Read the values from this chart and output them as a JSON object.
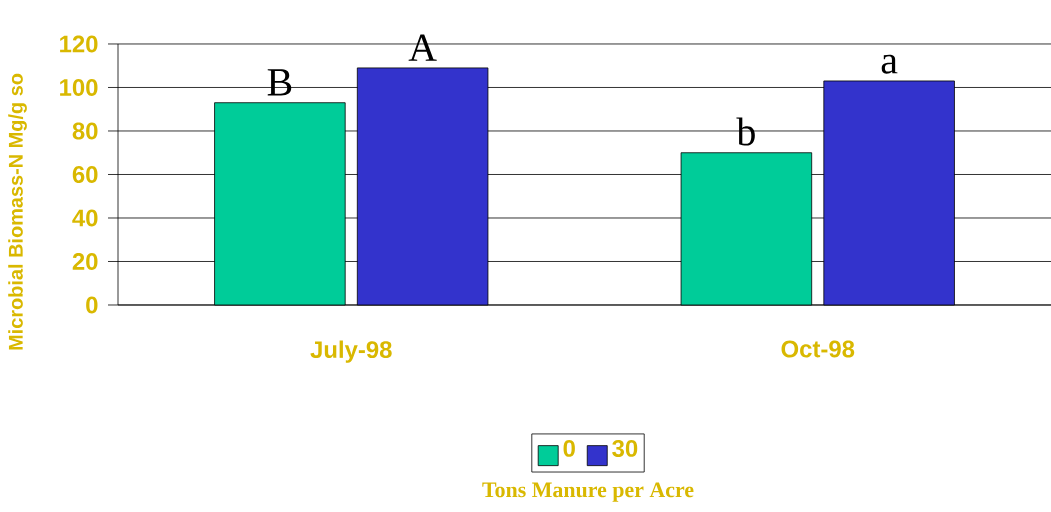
{
  "chart_data": {
    "type": "bar",
    "ylabel": "Microbial Biomass-N Mg/g so",
    "legend_title": "Tons Manure per Acre",
    "categories": [
      "July-98",
      "Oct-98"
    ],
    "series": [
      {
        "name": "0",
        "color": "#00cc99",
        "values": [
          93,
          70
        ]
      },
      {
        "name": "30",
        "color": "#3333cc",
        "values": [
          109,
          103
        ]
      }
    ],
    "ylim": [
      0,
      120
    ],
    "yticks": [
      0,
      20,
      40,
      60,
      80,
      100,
      120
    ],
    "grid": "y",
    "legend": "bottom",
    "annotations": [
      "B",
      "A",
      "b",
      "a"
    ]
  }
}
